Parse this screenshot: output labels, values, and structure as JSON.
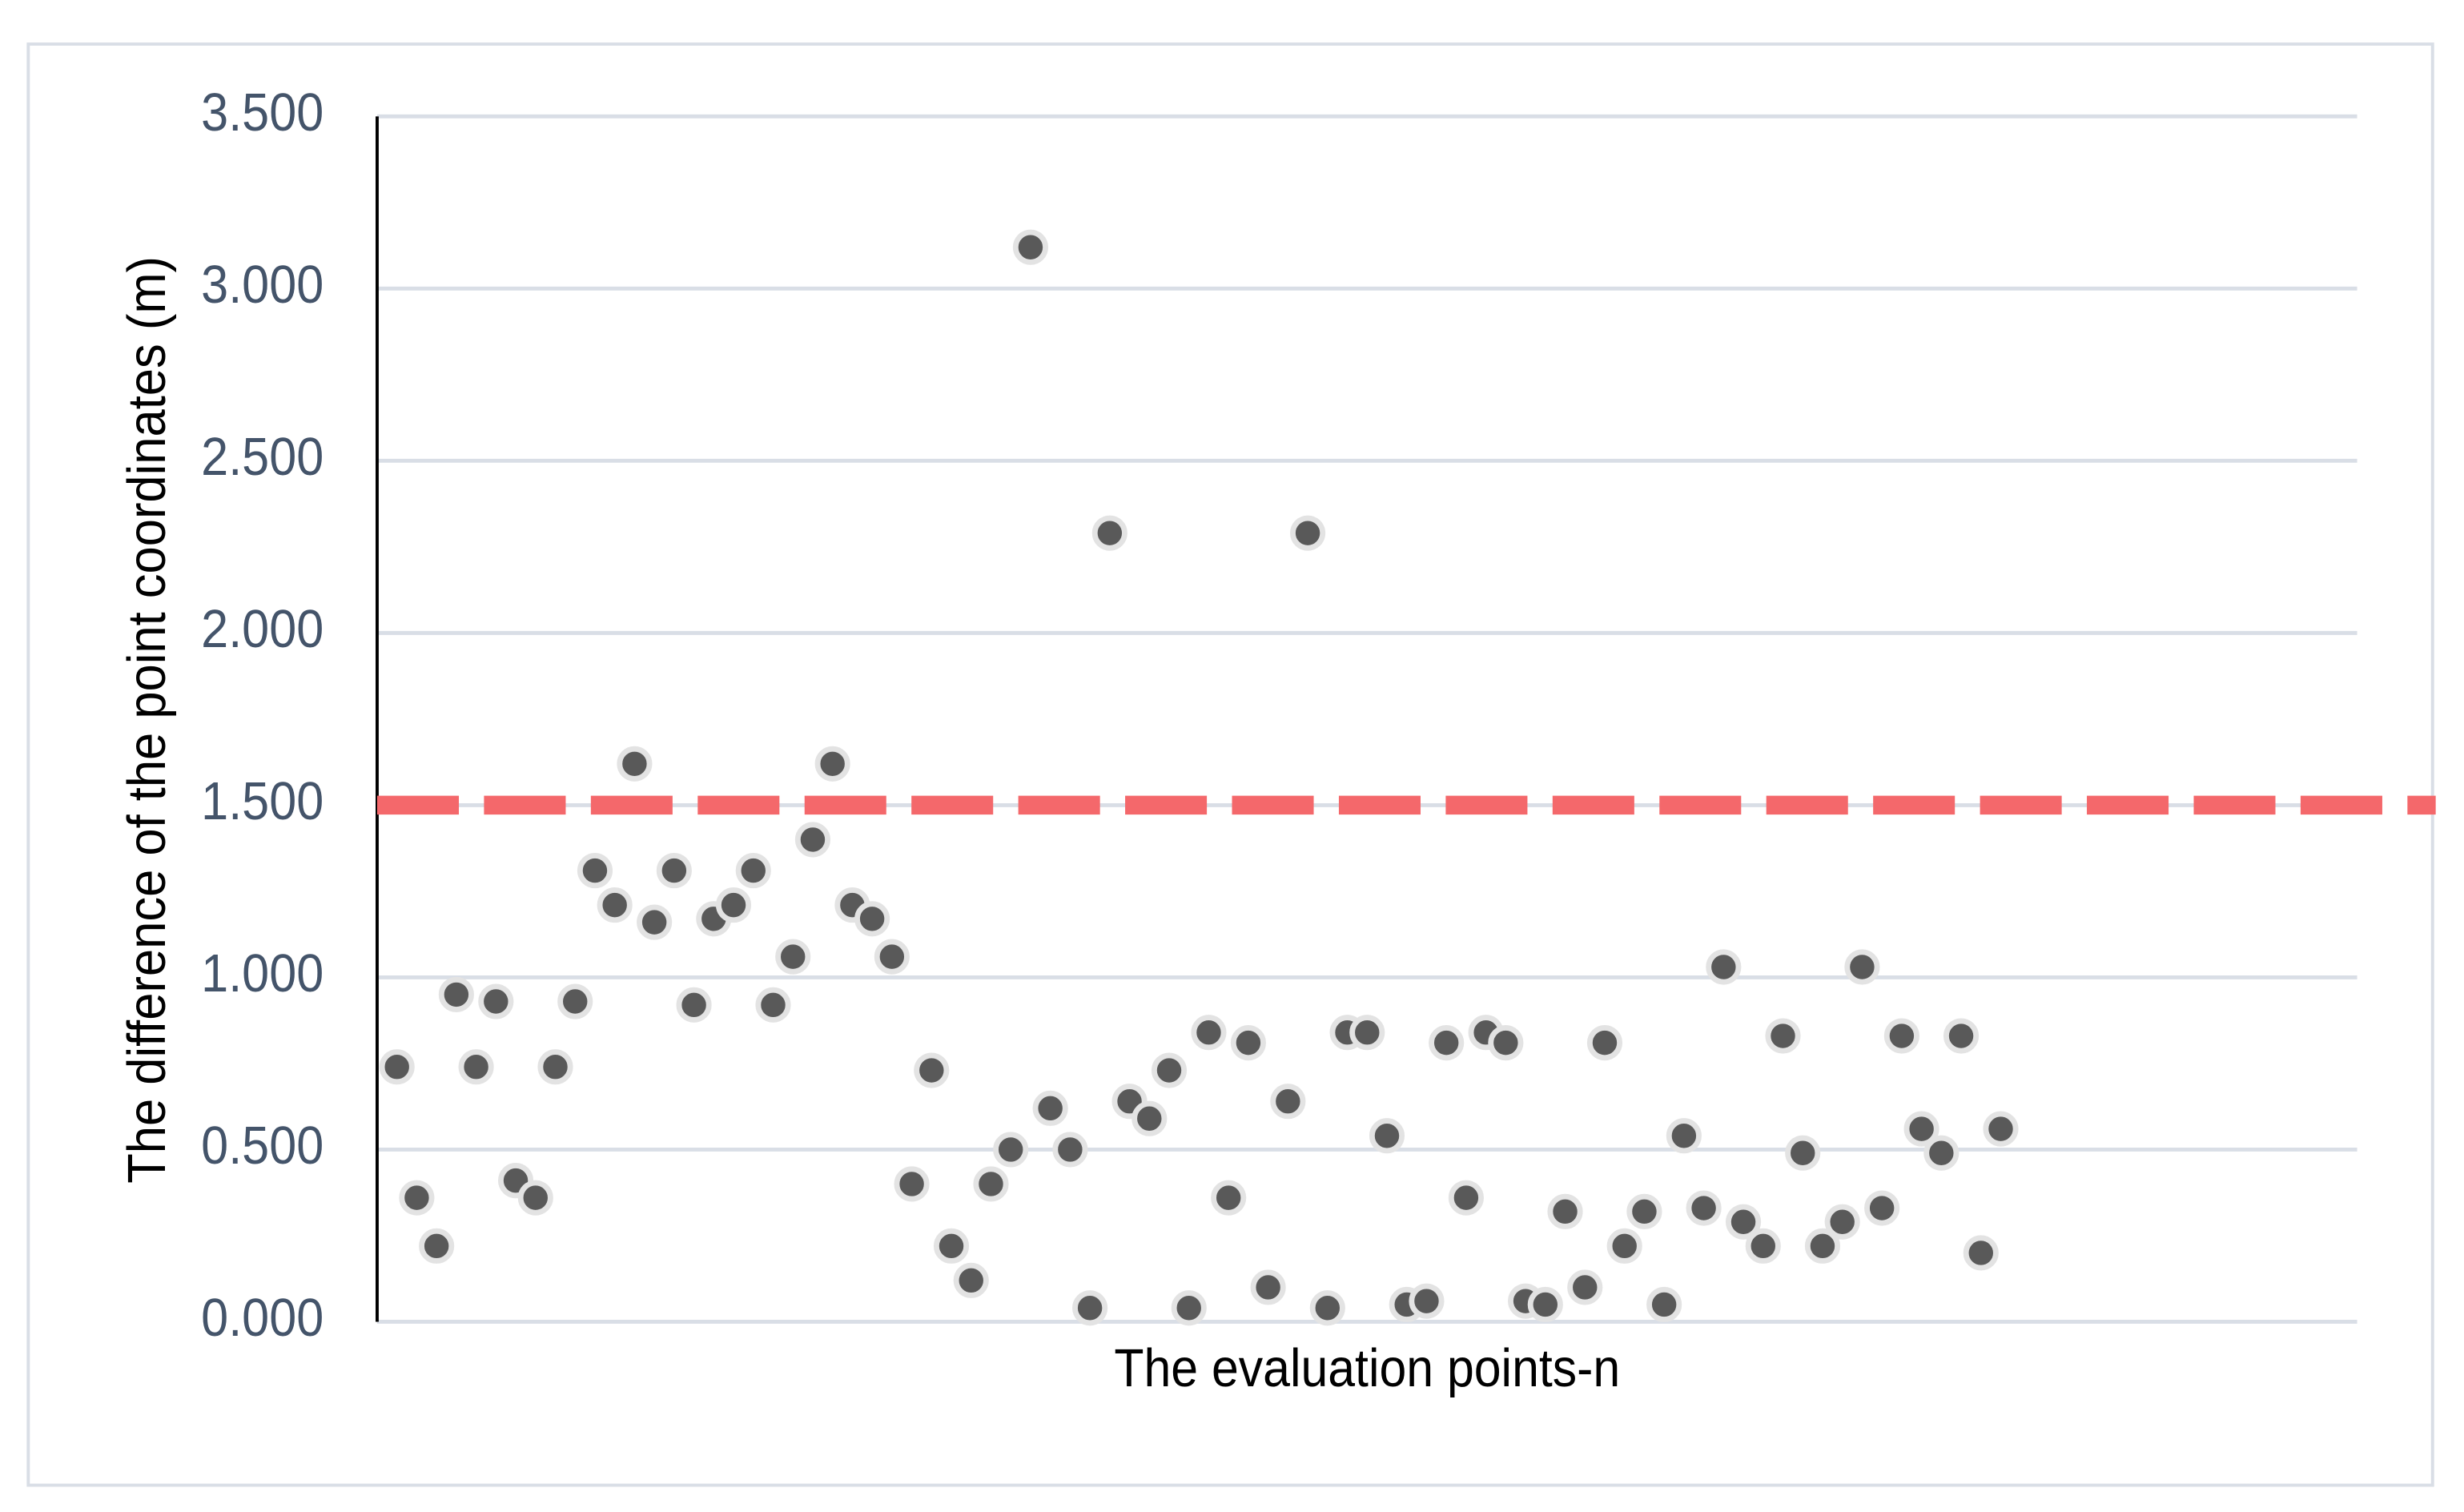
{
  "chart_data": {
    "type": "scatter",
    "xlabel": "The evaluation points-n",
    "ylabel": "The difference of the point coordinates (m)",
    "x": [
      1,
      2,
      3,
      4,
      5,
      6,
      7,
      8,
      9,
      10,
      11,
      12,
      13,
      14,
      15,
      16,
      17,
      18,
      19,
      20,
      21,
      22,
      23,
      24,
      25,
      26,
      27,
      28,
      29,
      30,
      31,
      32,
      33,
      34,
      35,
      36,
      37,
      38,
      39,
      40,
      41,
      42,
      43,
      44,
      45,
      46,
      47,
      48,
      49,
      50,
      51,
      52,
      53,
      54,
      55,
      56,
      57,
      58,
      59,
      60,
      61,
      62,
      63,
      64,
      65,
      66,
      67,
      68,
      69,
      70,
      71,
      72,
      73,
      74,
      75,
      76,
      77,
      78,
      79,
      80,
      81,
      82
    ],
    "series": [
      {
        "color": "#595959",
        "values": [
          0.74,
          0.36,
          0.22,
          0.95,
          0.74,
          0.93,
          0.41,
          0.36,
          0.74,
          0.93,
          1.31,
          1.21,
          1.62,
          1.16,
          1.31,
          0.92,
          1.17,
          1.21,
          1.31,
          0.92,
          1.06,
          1.4,
          1.62,
          1.21,
          1.17,
          1.06,
          0.4,
          0.73,
          0.22,
          0.12,
          0.4,
          0.5,
          3.12,
          0.62,
          0.5,
          0.04,
          2.29,
          0.64,
          0.59,
          0.73,
          0.04,
          0.84,
          0.36,
          0.81,
          0.1,
          0.64,
          2.29,
          0.04,
          0.84,
          0.84,
          0.54,
          0.05,
          0.06,
          0.81,
          0.36,
          0.84,
          0.81,
          0.06,
          0.05,
          0.32,
          0.1,
          0.81,
          0.22,
          0.32,
          0.05,
          0.54,
          0.33,
          1.03,
          0.29,
          0.22,
          0.83,
          0.49,
          0.22,
          0.29,
          1.03,
          0.33,
          0.83,
          0.56,
          0.49,
          0.83,
          0.2,
          0.56
        ]
      }
    ],
    "reference_line": {
      "value": 1.5,
      "color": "#f4686b"
    },
    "xlim": [
      0,
      100
    ],
    "ylim": [
      0,
      3.5
    ],
    "yticks": [
      {
        "value": 0,
        "label": "0.000"
      },
      {
        "value": 0.5,
        "label": "0.500"
      },
      {
        "value": 1,
        "label": "1.000"
      },
      {
        "value": 1.5,
        "label": "1.500"
      },
      {
        "value": 2,
        "label": "2.000"
      },
      {
        "value": 2.5,
        "label": "2.500"
      },
      {
        "value": 3,
        "label": "3.000"
      },
      {
        "value": 3.5,
        "label": "3.500"
      }
    ],
    "grid": true
  }
}
